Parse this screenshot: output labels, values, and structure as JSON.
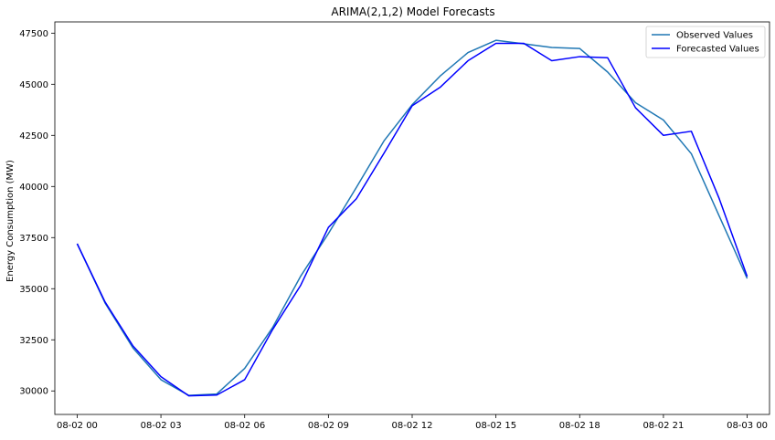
{
  "chart_data": {
    "type": "line",
    "title": "ARIMA(2,1,2) Model Forecasts",
    "xlabel": "",
    "ylabel": "Energy Consumption (MW)",
    "x": [
      "08-02 00",
      "08-02 01",
      "08-02 02",
      "08-02 03",
      "08-02 04",
      "08-02 05",
      "08-02 06",
      "08-02 07",
      "08-02 08",
      "08-02 09",
      "08-02 10",
      "08-02 11",
      "08-02 12",
      "08-02 13",
      "08-02 14",
      "08-02 15",
      "08-02 16",
      "08-02 17",
      "08-02 18",
      "08-02 19",
      "08-02 20",
      "08-02 21",
      "08-02 22",
      "08-02 23",
      "08-03 00"
    ],
    "x_ticks": [
      "08-02 00",
      "08-02 03",
      "08-02 06",
      "08-02 09",
      "08-02 12",
      "08-02 15",
      "08-02 18",
      "08-02 21",
      "08-03 00"
    ],
    "xlim_hours": [
      -0.8,
      24.8
    ],
    "y_ticks": [
      30000,
      32500,
      35000,
      37500,
      40000,
      42500,
      45000,
      47500
    ],
    "y_tick_labels": [
      "30000",
      "32500",
      "35000",
      "37500",
      "40000",
      "42500",
      "45000",
      "47500"
    ],
    "ylim": [
      28850,
      48050
    ],
    "grid": false,
    "legend_position": "top-right",
    "series": [
      {
        "name": "Observed Values",
        "color": "#1f77b4",
        "values": [
          37200,
          34300,
          32100,
          30550,
          29780,
          29850,
          31100,
          33100,
          35600,
          37700,
          39950,
          42250,
          44000,
          45400,
          46550,
          47150,
          46980,
          46800,
          46750,
          45600,
          44100,
          43250,
          41600,
          38550,
          35500
        ]
      },
      {
        "name": "Forecasted Values",
        "color": "#0000ff",
        "values": [
          37200,
          34350,
          32200,
          30700,
          29760,
          29800,
          30550,
          33000,
          35150,
          38000,
          39400,
          41650,
          43950,
          44850,
          46150,
          47000,
          47000,
          46150,
          46350,
          46300,
          43850,
          42500,
          42700,
          39400,
          35600
        ]
      }
    ]
  }
}
